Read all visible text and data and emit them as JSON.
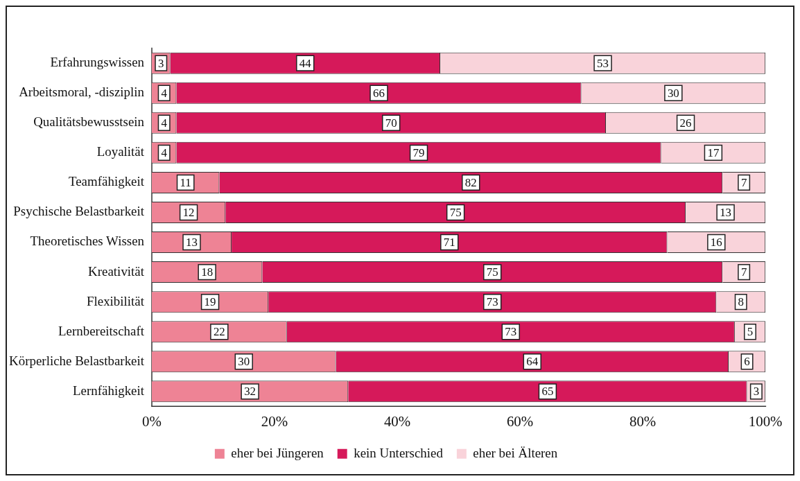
{
  "chart_data": {
    "type": "bar",
    "orientation": "horizontal",
    "stacked": true,
    "data_labels": true,
    "legend": "bottom",
    "grid": false,
    "categories": [
      "Erfahrungswissen",
      "Arbeitsmoral, -disziplin",
      "Qualitätsbewusstsein",
      "Loyalität",
      "Teamfähigkeit",
      "Psychische Belastbarkeit",
      "Theoretisches Wissen",
      "Kreativität",
      "Flexibilität",
      "Lernbereitschaft",
      "Körperliche Belastbarkeit",
      "Lernfähigkeit"
    ],
    "series": [
      {
        "name": "eher bei Jüngeren",
        "color": "#ee8395",
        "values": [
          3,
          4,
          4,
          4,
          11,
          12,
          13,
          18,
          19,
          22,
          30,
          32
        ]
      },
      {
        "name": "kein Unterschied",
        "color": "#d6195a",
        "values": [
          44,
          66,
          70,
          79,
          82,
          75,
          71,
          75,
          73,
          73,
          64,
          65
        ]
      },
      {
        "name": "eher bei Älteren",
        "color": "#f9d3da",
        "values": [
          53,
          30,
          26,
          17,
          7,
          13,
          16,
          7,
          8,
          5,
          6,
          3
        ]
      }
    ],
    "xlim": [
      0,
      100
    ],
    "xticks": [
      {
        "value": 0,
        "label": "0%"
      },
      {
        "value": 20,
        "label": "20%"
      },
      {
        "value": 40,
        "label": "40%"
      },
      {
        "value": 60,
        "label": "60%"
      },
      {
        "value": 80,
        "label": "80%"
      },
      {
        "value": 100,
        "label": "100%"
      }
    ]
  }
}
